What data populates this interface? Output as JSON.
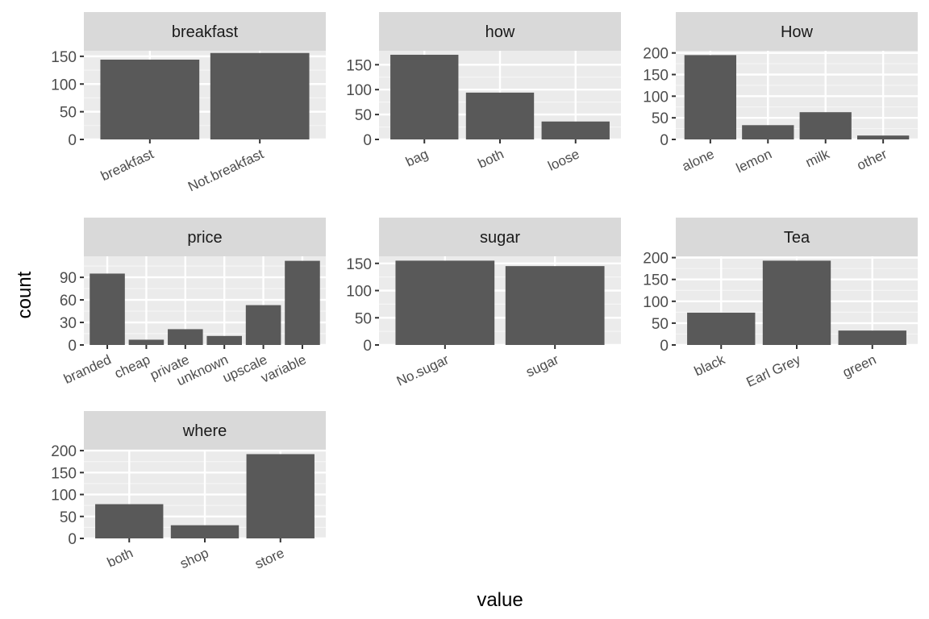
{
  "chart_data": {
    "type": "bar",
    "xlabel": "value",
    "ylabel": "count",
    "colors": {
      "bar": "#595959",
      "panel": "#ebebeb",
      "strip": "#d9d9d9",
      "grid_major": "#ffffff",
      "grid_minor": "#f5f5f5",
      "axis_text": "#4d4d4d",
      "tick": "#333333"
    },
    "facets": [
      {
        "title": "breakfast",
        "categories": [
          "breakfast",
          "Not.breakfast"
        ],
        "values": [
          144,
          156
        ],
        "ylim": [
          0,
          160
        ],
        "yticks": [
          0,
          50,
          100,
          150
        ],
        "grid_minor": [
          25,
          75,
          125
        ]
      },
      {
        "title": "how",
        "categories": [
          "bag",
          "both",
          "loose"
        ],
        "values": [
          170,
          94,
          36
        ],
        "ylim": [
          0,
          178
        ],
        "yticks": [
          0,
          50,
          100,
          150
        ],
        "grid_minor": [
          25,
          75,
          125
        ]
      },
      {
        "title": "How",
        "categories": [
          "alone",
          "lemon",
          "milk",
          "other"
        ],
        "values": [
          195,
          33,
          63,
          9
        ],
        "ylim": [
          0,
          205
        ],
        "yticks": [
          0,
          50,
          100,
          150,
          200
        ],
        "grid_minor": [
          25,
          75,
          125,
          175
        ]
      },
      {
        "title": "price",
        "categories": [
          "branded",
          "cheap",
          "private",
          "unknown",
          "upscale",
          "variable"
        ],
        "values": [
          95,
          7,
          21,
          12,
          53,
          112
        ],
        "ylim": [
          0,
          118
        ],
        "yticks": [
          0,
          30,
          60,
          90
        ],
        "grid_minor": [
          15,
          45,
          75,
          105
        ]
      },
      {
        "title": "sugar",
        "categories": [
          "No.sugar",
          "sugar"
        ],
        "values": [
          155,
          145
        ],
        "ylim": [
          0,
          163
        ],
        "yticks": [
          0,
          50,
          100,
          150
        ],
        "grid_minor": [
          25,
          75,
          125
        ]
      },
      {
        "title": "Tea",
        "categories": [
          "black",
          "Earl Grey",
          "green"
        ],
        "values": [
          74,
          193,
          33
        ],
        "ylim": [
          0,
          203
        ],
        "yticks": [
          0,
          50,
          100,
          150,
          200
        ],
        "grid_minor": [
          25,
          75,
          125,
          175
        ]
      },
      {
        "title": "where",
        "categories": [
          "both",
          "shop",
          "store"
        ],
        "values": [
          78,
          30,
          192
        ],
        "ylim": [
          0,
          202
        ],
        "yticks": [
          0,
          50,
          100,
          150,
          200
        ],
        "grid_minor": [
          25,
          75,
          125,
          175
        ]
      }
    ]
  }
}
